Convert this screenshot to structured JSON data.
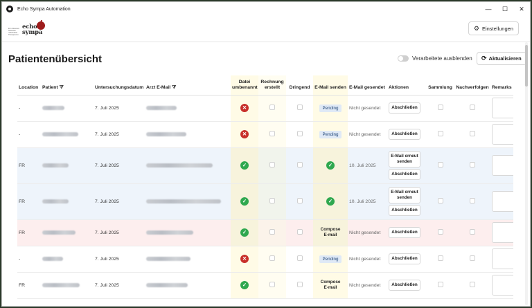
{
  "window": {
    "title": "Echo Sympa Automation",
    "controls": [
      "—",
      "☐",
      "✕"
    ]
  },
  "header": {
    "logo_small": "Ein erlesenes Netzwerk nahmhafter Therapeuten",
    "logo_text": "echo-sympa",
    "settings_label": "Einstellungen"
  },
  "page": {
    "title": "Patientenübersicht",
    "toggle_label": "Verarbeitete ausblenden",
    "refresh_label": "Aktualisieren"
  },
  "columns": {
    "location": "Location",
    "patient": "Patient",
    "date": "Untersuchungsdatum",
    "email": "Arzt E-Mail",
    "renamed": "Datei umbenannt",
    "invoice": "Rechnung erstellt",
    "urgent": "Dringend",
    "send": "E-Mail senden",
    "sent": "E-Mail gesendet",
    "actions": "Aktionen",
    "collection": "Sammlung",
    "followup": "Nachverfolgen",
    "remarks": "Remarks"
  },
  "labels": {
    "pending": "Pending",
    "compose": "Compose E-mail",
    "close": "Abschließen",
    "resend": "E-Mail erneut senden"
  },
  "rows": [
    {
      "location": "-",
      "date": "7. Juli 2025",
      "renamed": "x",
      "send": "pending",
      "sent": "Nicht gesendet",
      "resend": false,
      "color": "white",
      "pw": 32,
      "ew": 44
    },
    {
      "location": "-",
      "date": "7. Juli 2025",
      "renamed": "x",
      "send": "pending",
      "sent": "Nicht gesendet",
      "resend": false,
      "color": "white",
      "pw": 52,
      "ew": 58
    },
    {
      "location": "FR",
      "date": "7. Juli 2025",
      "renamed": "ok",
      "send": "ok",
      "sent": "10. Juli 2025",
      "resend": true,
      "color": "blue",
      "pw": 38,
      "ew": 96
    },
    {
      "location": "FR",
      "date": "7. Juli 2025",
      "renamed": "ok",
      "send": "ok",
      "sent": "10. Juli 2025",
      "resend": true,
      "color": "blue",
      "pw": 38,
      "ew": 108
    },
    {
      "location": "FR",
      "date": "7. Juli 2025",
      "renamed": "ok",
      "send": "compose",
      "sent": "Nicht gesendet",
      "resend": false,
      "color": "red",
      "pw": 48,
      "ew": 68
    },
    {
      "location": "-",
      "date": "7. Juli 2025",
      "renamed": "x",
      "send": "pending",
      "sent": "Nicht gesendet",
      "resend": false,
      "color": "white",
      "pw": 30,
      "ew": 64
    },
    {
      "location": "FR",
      "date": "7. Juli 2025",
      "renamed": "ok",
      "send": "compose",
      "sent": "Nicht gesendet",
      "resend": false,
      "color": "white",
      "pw": 54,
      "ew": 60
    }
  ]
}
